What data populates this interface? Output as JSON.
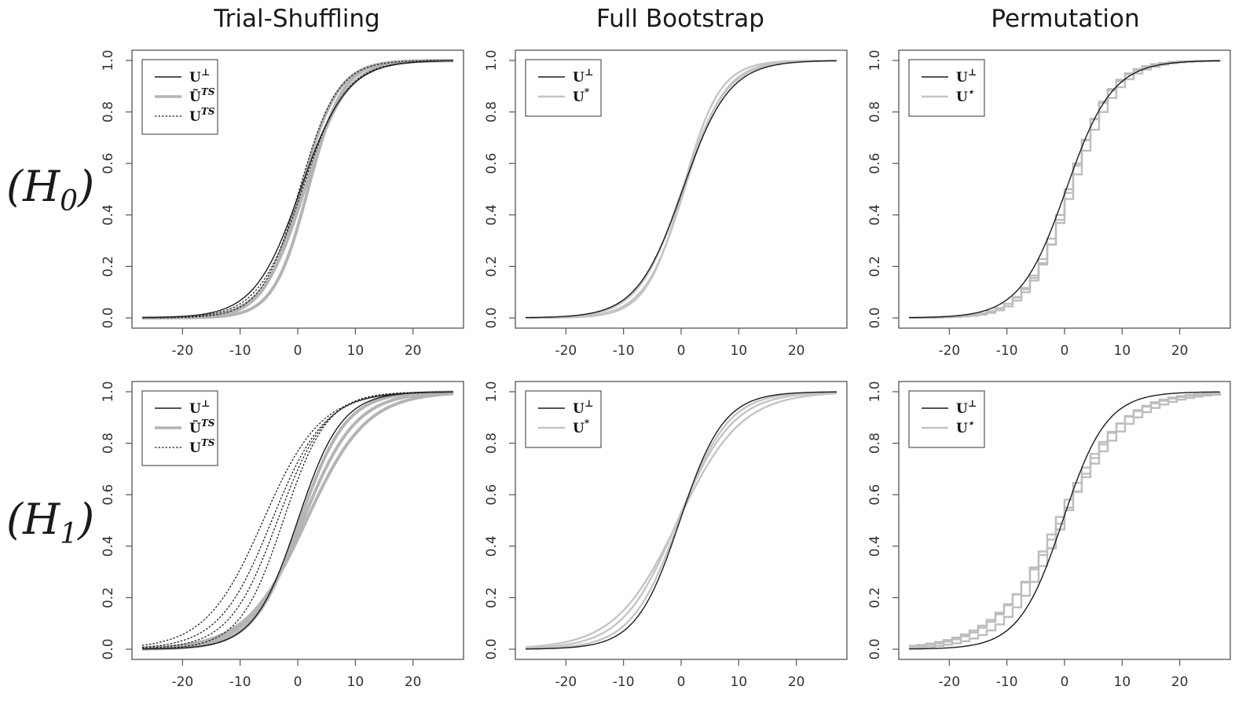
{
  "figure": {
    "column_titles": [
      "Trial-Shuffling",
      "Full Bootstrap",
      "Permutation"
    ],
    "row_labels": [
      {
        "main": "(H",
        "sub": "0",
        "close": ")"
      },
      {
        "main": "(H",
        "sub": "1",
        "close": ")"
      }
    ]
  },
  "chart_data": [
    {
      "type": "line",
      "row": "H0",
      "column": "Trial-Shuffling",
      "xlim": [
        -27,
        27
      ],
      "ylim": [
        0,
        1
      ],
      "xticks": [
        -20,
        -10,
        0,
        10,
        20
      ],
      "yticks": [
        0.0,
        0.2,
        0.4,
        0.6,
        0.8,
        1.0
      ],
      "legend_position": "top-left",
      "legend": [
        {
          "base": "U",
          "sup": "⊥",
          "style": "solid-black"
        },
        {
          "base": "Ũ",
          "sup": "TS",
          "style": "thick-gray"
        },
        {
          "base": "U",
          "sup": "TS",
          "style": "dotted-black"
        }
      ],
      "series": [
        {
          "style": "thick-gray",
          "location": [
            0.6,
            1.2,
            1.8
          ],
          "scale": [
            3.2,
            3.6,
            3.0
          ]
        },
        {
          "style": "solid-black",
          "location": [
            0.5
          ],
          "scale": [
            4.0
          ]
        },
        {
          "style": "dotted-black",
          "location": [
            0.3,
            0.8
          ],
          "scale": [
            3.3,
            3.8
          ]
        }
      ]
    },
    {
      "type": "line",
      "row": "H0",
      "column": "Full Bootstrap",
      "xlim": [
        -27,
        27
      ],
      "ylim": [
        0,
        1
      ],
      "xticks": [
        -20,
        -10,
        0,
        10,
        20
      ],
      "yticks": [
        0.0,
        0.2,
        0.4,
        0.6,
        0.8,
        1.0
      ],
      "legend_position": "top-left",
      "legend": [
        {
          "base": "U",
          "sup": "⊥",
          "style": "solid-black"
        },
        {
          "base": "U",
          "sup": "*",
          "style": "light-gray"
        }
      ],
      "series": [
        {
          "style": "light-gray",
          "location": [
            0.3,
            0.6,
            0.2
          ],
          "scale": [
            3.2,
            3.5,
            3.8
          ]
        },
        {
          "style": "solid-black",
          "location": [
            0.3
          ],
          "scale": [
            4.0
          ]
        }
      ]
    },
    {
      "type": "line",
      "row": "H0",
      "column": "Permutation",
      "xlim": [
        -27,
        27
      ],
      "ylim": [
        0,
        1
      ],
      "xticks": [
        -20,
        -10,
        0,
        10,
        20
      ],
      "yticks": [
        0.0,
        0.2,
        0.4,
        0.6,
        0.8,
        1.0
      ],
      "legend_position": "top-left",
      "legend": [
        {
          "base": "U",
          "sup": "⊥",
          "style": "solid-black"
        },
        {
          "base": "U",
          "sup": "⋆",
          "style": "light-gray"
        }
      ],
      "series": [
        {
          "style": "light-gray-step",
          "location": [
            0.2,
            0.6,
            0.0
          ],
          "scale": [
            3.5,
            3.9,
            3.7
          ],
          "step": 1.5
        },
        {
          "style": "solid-black",
          "location": [
            0.3
          ],
          "scale": [
            4.0
          ]
        }
      ]
    },
    {
      "type": "line",
      "row": "H1",
      "column": "Trial-Shuffling",
      "xlim": [
        -27,
        27
      ],
      "ylim": [
        0,
        1
      ],
      "xticks": [
        -20,
        -10,
        0,
        10,
        20
      ],
      "yticks": [
        0.0,
        0.2,
        0.4,
        0.6,
        0.8,
        1.0
      ],
      "legend_position": "top-left",
      "legend": [
        {
          "base": "U",
          "sup": "⊥",
          "style": "solid-black"
        },
        {
          "base": "Ũ",
          "sup": "TS",
          "style": "thick-gray"
        },
        {
          "base": "U",
          "sup": "TS",
          "style": "dotted-black"
        }
      ],
      "series": [
        {
          "style": "thick-gray",
          "location": [
            0.4,
            0.9,
            1.5
          ],
          "scale": [
            4.0,
            4.6,
            5.2
          ]
        },
        {
          "style": "solid-black",
          "location": [
            0.0
          ],
          "scale": [
            3.8
          ]
        },
        {
          "style": "dotted-black",
          "location": [
            -2.5,
            -3.5,
            -4.5,
            -6.0
          ],
          "scale": [
            3.8,
            4.2,
            4.6,
            5.0
          ]
        }
      ]
    },
    {
      "type": "line",
      "row": "H1",
      "column": "Full Bootstrap",
      "xlim": [
        -27,
        27
      ],
      "ylim": [
        0,
        1
      ],
      "xticks": [
        -20,
        -10,
        0,
        10,
        20
      ],
      "yticks": [
        0.0,
        0.2,
        0.4,
        0.6,
        0.8,
        1.0
      ],
      "legend_position": "top-left",
      "legend": [
        {
          "base": "U",
          "sup": "⊥",
          "style": "solid-black"
        },
        {
          "base": "U",
          "sup": "*",
          "style": "light-gray"
        }
      ],
      "series": [
        {
          "style": "light-gray",
          "location": [
            -0.3,
            -0.6,
            -0.5
          ],
          "scale": [
            4.2,
            4.8,
            5.5
          ]
        },
        {
          "style": "solid-black",
          "location": [
            -0.2
          ],
          "scale": [
            3.8
          ]
        }
      ]
    },
    {
      "type": "line",
      "row": "H1",
      "column": "Permutation",
      "xlim": [
        -27,
        27
      ],
      "ylim": [
        0,
        1
      ],
      "xticks": [
        -20,
        -10,
        0,
        10,
        20
      ],
      "yticks": [
        0.0,
        0.2,
        0.4,
        0.6,
        0.8,
        1.0
      ],
      "legend_position": "top-left",
      "legend": [
        {
          "base": "U",
          "sup": "⊥",
          "style": "solid-black"
        },
        {
          "base": "U",
          "sup": "⋆",
          "style": "light-gray"
        }
      ],
      "series": [
        {
          "style": "light-gray-step",
          "location": [
            -1.8,
            -1.2,
            -0.8
          ],
          "scale": [
            5.5,
            6.0,
            5.0
          ],
          "step": 1.5
        },
        {
          "style": "solid-black",
          "location": [
            -0.3
          ],
          "scale": [
            3.8
          ]
        }
      ]
    }
  ]
}
